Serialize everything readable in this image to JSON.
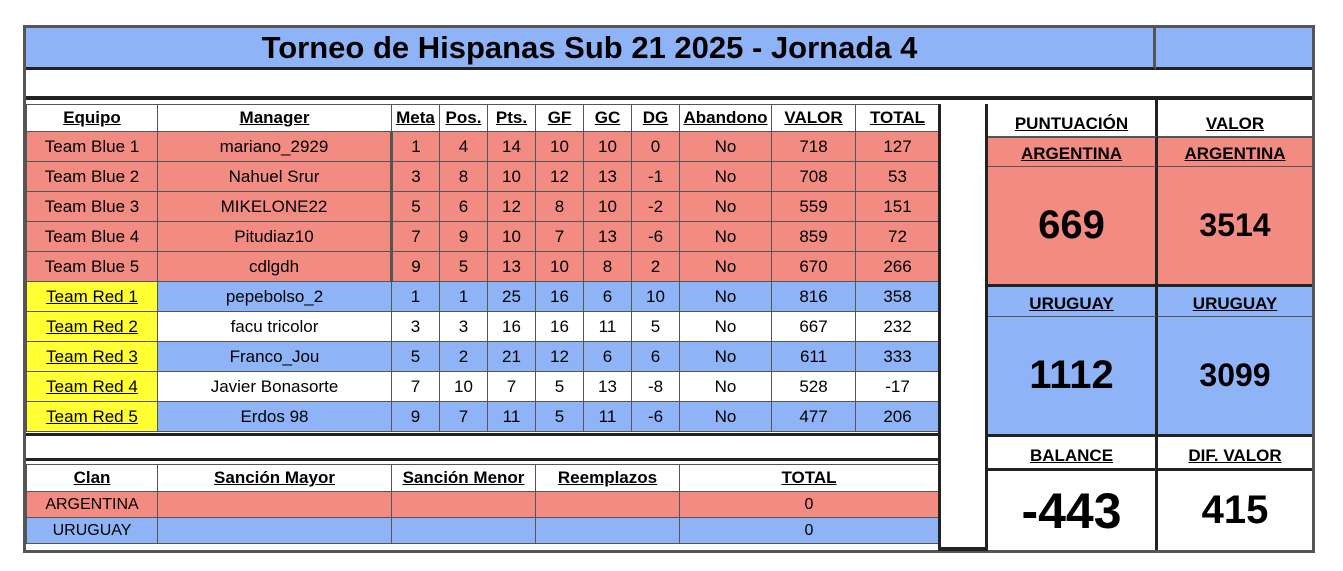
{
  "title": "Torneo de Hispanas Sub 21 2025 - Jornada 4",
  "main_table": {
    "headers": [
      "Equipo",
      "Manager",
      "Meta",
      "Pos.",
      "Pts.",
      "GF",
      "GC",
      "DG",
      "Abandono",
      "VALOR",
      "TOTAL"
    ],
    "rows": [
      {
        "equipo": "Team Blue 1",
        "manager": "mariano_2929",
        "meta": "1",
        "pos": "4",
        "pts": "14",
        "gf": "10",
        "gc": "10",
        "dg": "0",
        "abandono": "No",
        "valor": "718",
        "total": "127"
      },
      {
        "equipo": "Team Blue 2",
        "manager": "Nahuel Srur",
        "meta": "3",
        "pos": "8",
        "pts": "10",
        "gf": "12",
        "gc": "13",
        "dg": "-1",
        "abandono": "No",
        "valor": "708",
        "total": "53"
      },
      {
        "equipo": "Team Blue 3",
        "manager": "MIKELONE22",
        "meta": "5",
        "pos": "6",
        "pts": "12",
        "gf": "8",
        "gc": "10",
        "dg": "-2",
        "abandono": "No",
        "valor": "559",
        "total": "151"
      },
      {
        "equipo": "Team Blue 4",
        "manager": "Pitudiaz10",
        "meta": "7",
        "pos": "9",
        "pts": "10",
        "gf": "7",
        "gc": "13",
        "dg": "-6",
        "abandono": "No",
        "valor": "859",
        "total": "72"
      },
      {
        "equipo": "Team Blue 5",
        "manager": "cdlgdh",
        "meta": "9",
        "pos": "5",
        "pts": "13",
        "gf": "10",
        "gc": "8",
        "dg": "2",
        "abandono": "No",
        "valor": "670",
        "total": "266"
      },
      {
        "equipo": "Team Red 1",
        "manager": "pepebolso_2",
        "meta": "1",
        "pos": "1",
        "pts": "25",
        "gf": "16",
        "gc": "6",
        "dg": "10",
        "abandono": "No",
        "valor": "816",
        "total": "358"
      },
      {
        "equipo": "Team Red 2",
        "manager": "facu tricolor",
        "meta": "3",
        "pos": "3",
        "pts": "16",
        "gf": "16",
        "gc": "11",
        "dg": "5",
        "abandono": "No",
        "valor": "667",
        "total": "232"
      },
      {
        "equipo": "Team Red 3",
        "manager": "Franco_Jou",
        "meta": "5",
        "pos": "2",
        "pts": "21",
        "gf": "12",
        "gc": "6",
        "dg": "6",
        "abandono": "No",
        "valor": "611",
        "total": "333"
      },
      {
        "equipo": "Team Red 4",
        "manager": "Javier Bonasorte",
        "meta": "7",
        "pos": "10",
        "pts": "7",
        "gf": "5",
        "gc": "13",
        "dg": "-8",
        "abandono": "No",
        "valor": "528",
        "total": "-17"
      },
      {
        "equipo": "Team Red 5",
        "manager": "Erdos 98",
        "meta": "9",
        "pos": "7",
        "pts": "11",
        "gf": "5",
        "gc": "11",
        "dg": "-6",
        "abandono": "No",
        "valor": "477",
        "total": "206"
      }
    ]
  },
  "penalty_table": {
    "headers": [
      "Clan",
      "Sanción Mayor",
      "Sanción Menor",
      "Reemplazos",
      "TOTAL"
    ],
    "rows": [
      {
        "clan": "ARGENTINA",
        "mayor": "",
        "menor": "",
        "reemplazos": "",
        "total": "0"
      },
      {
        "clan": "URUGUAY",
        "mayor": "",
        "menor": "",
        "reemplazos": "",
        "total": "0"
      }
    ]
  },
  "summary": {
    "puntuacion_label": "PUNTUACIÓN",
    "valor_label": "VALOR",
    "argentina_label": "ARGENTINA",
    "uruguay_label": "URUGUAY",
    "argentina_puntuacion": "669",
    "argentina_valor": "3514",
    "uruguay_puntuacion": "1112",
    "uruguay_valor": "3099",
    "balance_label": "BALANCE",
    "dif_valor_label": "DIF. VALOR",
    "balance": "-443",
    "dif_valor": "415"
  },
  "colors": {
    "blue": "#8eb4f7",
    "red": "#f28b82",
    "yellow": "#ffff33"
  }
}
